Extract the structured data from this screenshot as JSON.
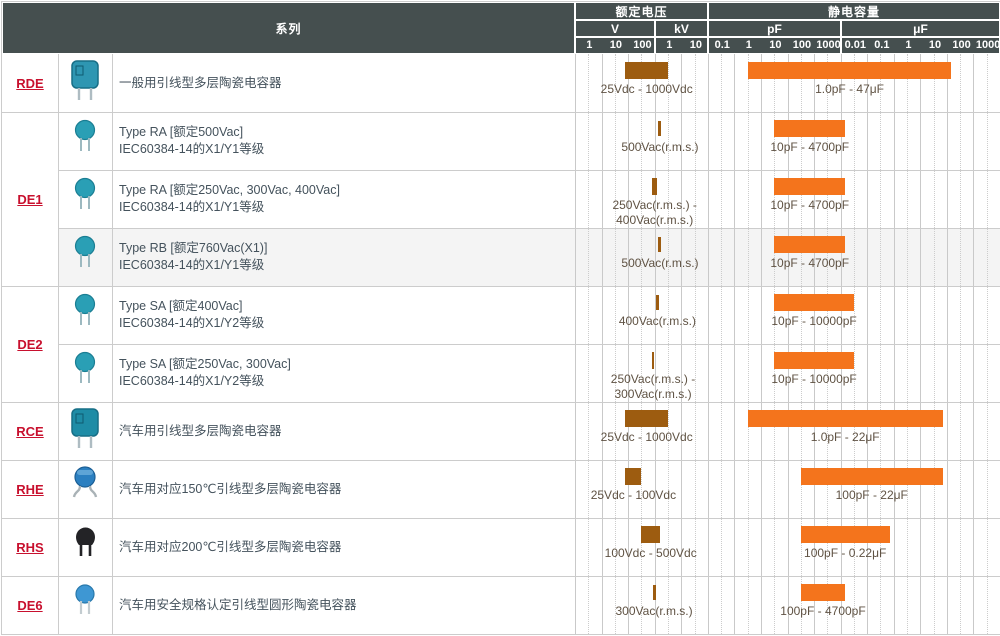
{
  "header": {
    "series_label": "系列",
    "voltage": {
      "label": "额定电压",
      "units": [
        {
          "label": "V",
          "ticks": [
            "1",
            "10",
            "100"
          ]
        },
        {
          "label": "kV",
          "ticks": [
            "1",
            "10"
          ]
        }
      ]
    },
    "capacitance": {
      "label": "静电容量",
      "units": [
        {
          "label": "pF",
          "ticks": [
            "0.1",
            "1",
            "10",
            "100",
            "1000"
          ]
        },
        {
          "label": "μF",
          "ticks": [
            "0.01",
            "0.1",
            "1",
            "10",
            "100",
            "1000"
          ]
        }
      ]
    }
  },
  "chart_data": {
    "type": "bar",
    "subtype": "horizontal log-scale range bars in table rows",
    "voltage_axis": {
      "scale": "log",
      "unit_sections": [
        "V",
        "kV"
      ],
      "decade_ticks_V": [
        1,
        10,
        100,
        1000,
        10000
      ]
    },
    "capacitance_axis": {
      "scale": "log",
      "unit_sections": [
        "pF",
        "μF"
      ],
      "decade_ticks_pF": [
        0.1,
        1,
        10,
        100,
        1000,
        10000,
        100000,
        1000000,
        10000000,
        100000000,
        1000000000
      ]
    },
    "groups": [
      {
        "series": "RDE",
        "icon": "box-capacitor-icon",
        "icon_color": "#2e96b2",
        "rows": [
          {
            "description": [
              "一般用引线型多层陶瓷电容器"
            ],
            "shaded": false,
            "voltage_V": [
              25,
              1000
            ],
            "voltage_label": "25Vdc - 1000Vdc",
            "capacitance_pF": [
              1,
              47000000
            ],
            "capacitance_label": "1.0pF - 47μF"
          }
        ]
      },
      {
        "series": "DE1",
        "icon": "disc-capacitor-icon",
        "icon_color": "#2a9fb5",
        "rows": [
          {
            "description": [
              "Type RA [额定500Vac]",
              "IEC60384-14的X1/Y1等级"
            ],
            "shaded": false,
            "voltage_V": [
              500,
              500
            ],
            "voltage_label": "500Vac(r.m.s.)",
            "capacitance_pF": [
              10,
              4700
            ],
            "capacitance_label": "10pF - 4700pF"
          },
          {
            "description": [
              "Type RA [额定250Vac, 300Vac, 400Vac]",
              "IEC60384-14的X1/Y1等级"
            ],
            "shaded": false,
            "voltage_V": [
              250,
              400
            ],
            "voltage_label": "250Vac(r.m.s.) -\n400Vac(r.m.s.)",
            "capacitance_pF": [
              10,
              4700
            ],
            "capacitance_label": "10pF - 4700pF"
          },
          {
            "description": [
              "Type RB [额定760Vac(X1)]",
              "IEC60384-14的X1/Y1等级"
            ],
            "shaded": true,
            "voltage_V": [
              500,
              500
            ],
            "voltage_label": "500Vac(r.m.s.)",
            "capacitance_pF": [
              10,
              4700
            ],
            "capacitance_label": "10pF - 4700pF"
          }
        ]
      },
      {
        "series": "DE2",
        "icon": "disc-capacitor-icon",
        "icon_color": "#2a9fb5",
        "rows": [
          {
            "description": [
              "Type SA [额定400Vac]",
              "IEC60384-14的X1/Y2等级"
            ],
            "shaded": false,
            "voltage_V": [
              400,
              400
            ],
            "voltage_label": "400Vac(r.m.s.)",
            "capacitance_pF": [
              10,
              10000
            ],
            "capacitance_label": "10pF - 10000pF"
          },
          {
            "description": [
              "Type SA [额定250Vac, 300Vac]",
              "IEC60384-14的X1/Y2等级"
            ],
            "shaded": false,
            "voltage_V": [
              250,
              300
            ],
            "voltage_label": "250Vac(r.m.s.) -\n300Vac(r.m.s.)",
            "capacitance_pF": [
              10,
              10000
            ],
            "capacitance_label": "10pF - 10000pF"
          }
        ]
      },
      {
        "series": "RCE",
        "icon": "box-capacitor-icon",
        "icon_color": "#1e8ca6",
        "rows": [
          {
            "description": [
              "汽车用引线型多层陶瓷电容器"
            ],
            "shaded": false,
            "voltage_V": [
              25,
              1000
            ],
            "voltage_label": "25Vdc - 1000Vdc",
            "capacitance_pF": [
              1,
              22000000
            ],
            "capacitance_label": "1.0pF - 22μF"
          }
        ]
      },
      {
        "series": "RHE",
        "icon": "disc-capacitor-bent-leads-icon",
        "icon_color": "#2b7fc0",
        "rows": [
          {
            "description": [
              "汽车用对应150℃引线型多层陶瓷电容器"
            ],
            "shaded": false,
            "voltage_V": [
              25,
              100
            ],
            "voltage_label": "25Vdc - 100Vdc",
            "capacitance_pF": [
              100,
              22000000
            ],
            "capacitance_label": "100pF - 22μF"
          }
        ]
      },
      {
        "series": "RHS",
        "icon": "disc-capacitor-black-icon",
        "icon_color": "#232326",
        "rows": [
          {
            "description": [
              "汽车用对应200℃引线型多层陶瓷电容器"
            ],
            "shaded": false,
            "voltage_V": [
              100,
              500
            ],
            "voltage_label": "100Vdc - 500Vdc",
            "capacitance_pF": [
              100,
              220000
            ],
            "capacitance_label": "100pF - 0.22μF"
          }
        ]
      },
      {
        "series": "DE6",
        "icon": "disc-capacitor-light-blue-icon",
        "icon_color": "#3e97d3",
        "rows": [
          {
            "description": [
              "汽车用安全规格认定引线型圆形陶瓷电容器"
            ],
            "shaded": false,
            "voltage_V": [
              300,
              300
            ],
            "voltage_label": "300Vac(r.m.s.)",
            "capacitance_pF": [
              100,
              4700
            ],
            "capacitance_label": "100pF - 4700pF"
          }
        ]
      }
    ]
  },
  "colors": {
    "header_bg": "#454f4f",
    "header_text": "#ffffff",
    "series_link": "#c8102e",
    "voltage_bar": "#9d5c10",
    "capacitance_bar": "#f4741c",
    "shaded_row_bg": "#f4f4f4",
    "grid_line": "#c9c9c9",
    "row_border": "#cccccc",
    "description_text": "#44525c",
    "bar_label_text": "#5f5243"
  }
}
